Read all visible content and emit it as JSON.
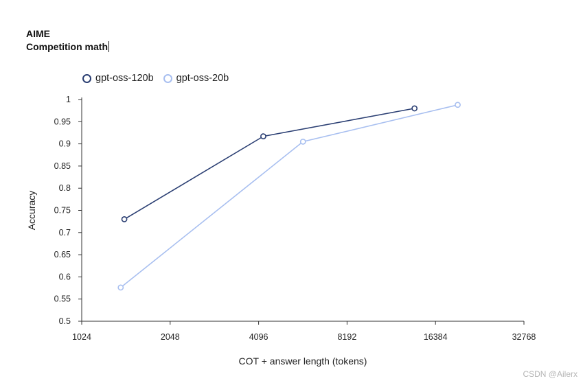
{
  "header": {
    "title": "AIME",
    "subtitle": "Competition math"
  },
  "watermark": "CSDN @Ailerx",
  "chart_data": {
    "type": "line",
    "xlabel": "COT + answer length (tokens)",
    "ylabel": "Accuracy",
    "x_scale": "log2",
    "xlim": [
      1024,
      32768
    ],
    "ylim": [
      0.5,
      1
    ],
    "x_ticks": [
      "1024",
      "2048",
      "4096",
      "8192",
      "16384",
      "32768"
    ],
    "y_ticks": [
      "0.5",
      "0.55",
      "0.6",
      "0.65",
      "0.7",
      "0.75",
      "0.8",
      "0.85",
      "0.9",
      "0.95",
      "1"
    ],
    "grid": false,
    "legend_position": "top-left",
    "series": [
      {
        "name": "gpt-oss-120b",
        "color": "#2b3f73",
        "x": [
          1430,
          4250,
          13900
        ],
        "y": [
          0.73,
          0.917,
          0.98
        ]
      },
      {
        "name": "gpt-oss-20b",
        "color": "#a8bff0",
        "x": [
          1390,
          5800,
          19500
        ],
        "y": [
          0.576,
          0.905,
          0.988
        ]
      }
    ]
  }
}
